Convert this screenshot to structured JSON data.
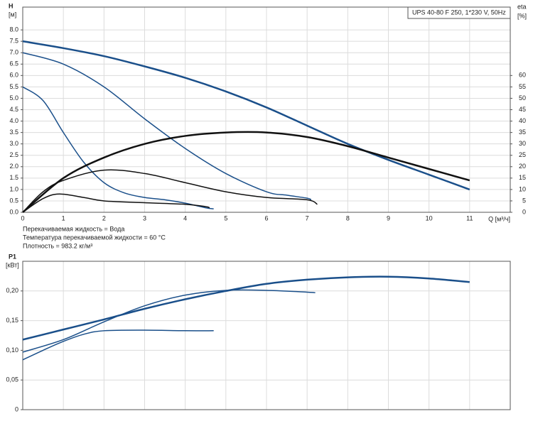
{
  "chart_data": [
    {
      "type": "line",
      "title": "UPS 40-80 F 250, 1*230 V, 50Hz",
      "y_label": "H",
      "y_unit": "[м]",
      "y2_label": "eta",
      "y2_unit": "[%]",
      "x_label": "Q [м³/ч]",
      "annotations": [
        "Перекачиваемая жидкость = Вода",
        "Температура перекачиваемой жидкости = 60 °C",
        "Плотность = 983.2 кг/м³"
      ],
      "xlim": [
        0,
        12
      ],
      "xticks": [
        0,
        1,
        2,
        3,
        4,
        5,
        6,
        7,
        8,
        9,
        10,
        11
      ],
      "ylim": [
        0,
        9
      ],
      "yticks": [
        {
          "value": 0,
          "label": "0.0"
        },
        0.5,
        {
          "value": 1,
          "label": "1.0"
        },
        1.5,
        {
          "value": 2,
          "label": "2.0"
        },
        2.5,
        {
          "value": 3,
          "label": "3.0"
        },
        3.5,
        {
          "value": 4,
          "label": "4.0"
        },
        4.5,
        {
          "value": 5,
          "label": "5.0"
        },
        5.5,
        {
          "value": 6,
          "label": "6.0"
        },
        6.5,
        {
          "value": 7,
          "label": "7.0"
        },
        7.5,
        {
          "value": 8,
          "label": "8.0"
        }
      ],
      "y2lim": [
        0,
        90
      ],
      "y2ticks": [
        0,
        5,
        10,
        15,
        20,
        25,
        30,
        35,
        40,
        45,
        50,
        55,
        60
      ],
      "grid": true,
      "series": [
        {
          "color": "#1a4f8a",
          "width": 2.5,
          "x": [
            0,
            1,
            2,
            3,
            4,
            5,
            6,
            7,
            8,
            9,
            10,
            11
          ],
          "values": [
            7.5,
            7.2,
            6.85,
            6.4,
            5.9,
            5.3,
            4.6,
            3.8,
            3.0,
            2.3,
            1.65,
            1.0
          ]
        },
        {
          "color": "#1a4f8a",
          "width": 1.5,
          "x": [
            0,
            1,
            2,
            3,
            4,
            5,
            6,
            6.5,
            7,
            7.1
          ],
          "values": [
            7.0,
            6.5,
            5.5,
            4.1,
            2.8,
            1.7,
            0.9,
            0.75,
            0.62,
            0.55
          ]
        },
        {
          "color": "#1a4f8a",
          "width": 1.5,
          "x": [
            0,
            0.5,
            1,
            1.5,
            2,
            2.5,
            3,
            3.5,
            4,
            4.5,
            4.7
          ],
          "values": [
            5.5,
            4.9,
            3.5,
            2.2,
            1.3,
            0.85,
            0.65,
            0.55,
            0.4,
            0.2,
            0.15
          ]
        },
        {
          "color": "#111111",
          "width": 2.5,
          "axis": "y2",
          "x": [
            0,
            1,
            2,
            3,
            4,
            5,
            6,
            7,
            8,
            9,
            10,
            11
          ],
          "values": [
            0,
            15,
            24,
            30,
            33.5,
            35,
            35,
            33,
            29,
            24,
            19,
            14
          ]
        },
        {
          "color": "#111111",
          "width": 1.5,
          "axis": "y2",
          "x": [
            0,
            0.5,
            1,
            2,
            3,
            4,
            5,
            6,
            7,
            7.25
          ],
          "values": [
            0,
            9,
            14,
            18.5,
            17,
            13,
            9,
            6.5,
            5.5,
            3.5
          ]
        },
        {
          "color": "#111111",
          "width": 1.5,
          "axis": "y2",
          "x": [
            0,
            0.5,
            0.9,
            1.5,
            2,
            3,
            4,
            4.5,
            4.6
          ],
          "values": [
            0,
            6,
            8,
            6.5,
            5,
            4.2,
            3.5,
            2.5,
            2
          ]
        }
      ]
    },
    {
      "type": "line",
      "y_label": "P1",
      "y_unit": "[кВт]",
      "xlim": [
        0,
        12
      ],
      "xticks": [
        0,
        1,
        2,
        3,
        4,
        5,
        6,
        7,
        8,
        9,
        10,
        11
      ],
      "ylim": [
        0,
        0.25
      ],
      "yticks": [
        0,
        {
          "value": 0.05,
          "label": "0,05"
        },
        {
          "value": 0.1,
          "label": "0,10"
        },
        {
          "value": 0.15,
          "label": "0,15"
        },
        {
          "value": 0.2,
          "label": "0,20"
        }
      ],
      "grid": true,
      "series": [
        {
          "color": "#1a4f8a",
          "width": 2.5,
          "x": [
            0,
            1,
            2,
            3,
            4,
            5,
            6,
            7,
            8,
            9,
            10,
            11
          ],
          "values": [
            0.118,
            0.135,
            0.152,
            0.17,
            0.186,
            0.2,
            0.212,
            0.219,
            0.223,
            0.224,
            0.221,
            0.215
          ]
        },
        {
          "color": "#1a4f8a",
          "width": 1.5,
          "x": [
            0,
            1,
            2,
            3,
            4,
            5,
            6,
            7,
            7.2
          ],
          "values": [
            0.097,
            0.118,
            0.148,
            0.175,
            0.193,
            0.201,
            0.201,
            0.198,
            0.197
          ]
        },
        {
          "color": "#1a4f8a",
          "width": 1.5,
          "x": [
            0,
            0.5,
            1,
            1.5,
            2,
            3,
            4,
            4.7
          ],
          "values": [
            0.084,
            0.1,
            0.115,
            0.127,
            0.133,
            0.134,
            0.133,
            0.133
          ]
        }
      ]
    }
  ]
}
